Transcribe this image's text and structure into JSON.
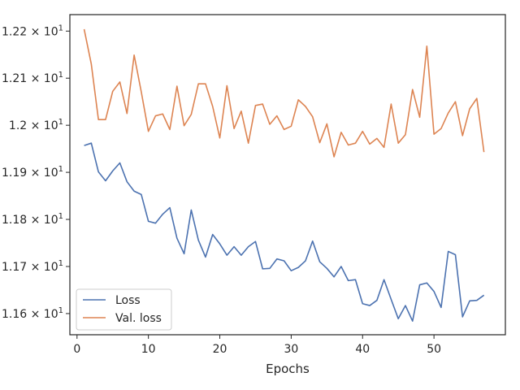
{
  "chart_data": {
    "type": "line",
    "title": "",
    "xlabel": "Epochs",
    "ylabel": "",
    "xlim": [
      -1,
      60
    ],
    "ylim": [
      11.555,
      12.235
    ],
    "grid": false,
    "legend_position": "lower-left",
    "x_ticks": [
      0,
      10,
      20,
      30,
      40,
      50
    ],
    "y_ticks": [
      {
        "value": 11.6,
        "mantissa": "1.16",
        "exp": "1"
      },
      {
        "value": 11.7,
        "mantissa": "1.17",
        "exp": "1"
      },
      {
        "value": 11.8,
        "mantissa": "1.18",
        "exp": "1"
      },
      {
        "value": 11.9,
        "mantissa": "1.19",
        "exp": "1"
      },
      {
        "value": 12.0,
        "mantissa": "1.2",
        "exp": "1"
      },
      {
        "value": 12.1,
        "mantissa": "1.21",
        "exp": "1"
      },
      {
        "value": 12.2,
        "mantissa": "1.22",
        "exp": "1"
      }
    ],
    "tick_base": "× 10",
    "x": [
      1,
      2,
      3,
      4,
      5,
      6,
      7,
      8,
      9,
      10,
      11,
      12,
      13,
      14,
      15,
      16,
      17,
      18,
      19,
      20,
      21,
      22,
      23,
      24,
      25,
      26,
      27,
      28,
      29,
      30,
      31,
      32,
      33,
      34,
      35,
      36,
      37,
      38,
      39,
      40,
      41,
      42,
      43,
      44,
      45,
      46,
      47,
      48,
      49,
      50,
      51,
      52,
      53,
      54,
      55,
      56,
      57
    ],
    "series": [
      {
        "name": "Loss",
        "color": "#4c72b0",
        "values": [
          11.957,
          11.962,
          11.901,
          11.882,
          11.903,
          11.92,
          11.88,
          11.86,
          11.853,
          11.796,
          11.792,
          11.811,
          11.825,
          11.76,
          11.727,
          11.82,
          11.756,
          11.72,
          11.768,
          11.748,
          11.724,
          11.742,
          11.724,
          11.742,
          11.753,
          11.695,
          11.696,
          11.716,
          11.712,
          11.691,
          11.698,
          11.712,
          11.754,
          11.71,
          11.696,
          11.678,
          11.7,
          11.67,
          11.672,
          11.621,
          11.617,
          11.628,
          11.672,
          11.63,
          11.589,
          11.617,
          11.584,
          11.661,
          11.665,
          11.647,
          11.613,
          11.732,
          11.725,
          11.593,
          11.627,
          11.628,
          11.639
        ]
      },
      {
        "name": "Val. loss",
        "color": "#dd8452",
        "values": [
          12.204,
          12.13,
          12.012,
          12.012,
          12.072,
          12.092,
          12.025,
          12.149,
          12.071,
          11.987,
          12.02,
          12.024,
          11.991,
          12.083,
          11.999,
          12.023,
          12.088,
          12.088,
          12.04,
          11.973,
          12.084,
          11.993,
          12.03,
          11.962,
          12.042,
          12.045,
          12.002,
          12.02,
          11.991,
          11.998,
          12.054,
          12.04,
          12.018,
          11.963,
          12.003,
          11.933,
          11.985,
          11.958,
          11.962,
          11.987,
          11.96,
          11.972,
          11.953,
          12.045,
          11.962,
          11.98,
          12.076,
          12.017,
          12.168,
          11.981,
          11.993,
          12.026,
          12.05,
          11.978,
          12.035,
          12.057,
          11.943
        ]
      }
    ]
  }
}
